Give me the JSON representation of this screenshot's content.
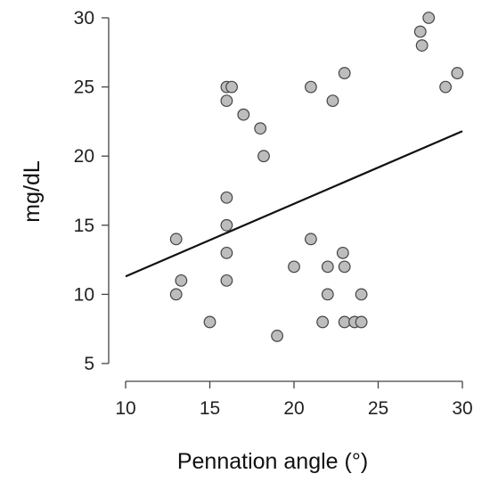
{
  "chart_data": {
    "type": "scatter",
    "title": "",
    "xlabel": "Pennation angle (°)",
    "ylabel": "mg/dL",
    "xlim": [
      10,
      30
    ],
    "ylim": [
      5,
      30
    ],
    "x_ticks": [
      10,
      15,
      20,
      25,
      30
    ],
    "y_ticks": [
      5,
      10,
      15,
      20,
      25,
      30
    ],
    "grid": false,
    "legend": "none",
    "colors": {
      "point_fill": "#bdbdbd",
      "point_stroke": "#444444",
      "trend_line": "#111111"
    },
    "series": [
      {
        "points": [
          {
            "x": 13.0,
            "y": 14
          },
          {
            "x": 13.0,
            "y": 10
          },
          {
            "x": 13.3,
            "y": 11
          },
          {
            "x": 15.0,
            "y": 8
          },
          {
            "x": 16.0,
            "y": 25
          },
          {
            "x": 16.3,
            "y": 25
          },
          {
            "x": 16.0,
            "y": 24
          },
          {
            "x": 16.0,
            "y": 17
          },
          {
            "x": 16.0,
            "y": 15
          },
          {
            "x": 16.0,
            "y": 13
          },
          {
            "x": 16.0,
            "y": 11
          },
          {
            "x": 17.0,
            "y": 23
          },
          {
            "x": 18.0,
            "y": 22
          },
          {
            "x": 18.2,
            "y": 20
          },
          {
            "x": 19.0,
            "y": 7
          },
          {
            "x": 20.0,
            "y": 12
          },
          {
            "x": 21.0,
            "y": 25
          },
          {
            "x": 21.0,
            "y": 14
          },
          {
            "x": 21.7,
            "y": 8
          },
          {
            "x": 22.0,
            "y": 12
          },
          {
            "x": 22.0,
            "y": 10
          },
          {
            "x": 22.3,
            "y": 24
          },
          {
            "x": 23.0,
            "y": 26
          },
          {
            "x": 22.9,
            "y": 13
          },
          {
            "x": 23.0,
            "y": 12
          },
          {
            "x": 23.0,
            "y": 8
          },
          {
            "x": 23.6,
            "y": 8
          },
          {
            "x": 24.0,
            "y": 10
          },
          {
            "x": 24.0,
            "y": 8
          },
          {
            "x": 27.5,
            "y": 29
          },
          {
            "x": 27.6,
            "y": 28
          },
          {
            "x": 28.0,
            "y": 30
          },
          {
            "x": 29.0,
            "y": 25
          },
          {
            "x": 29.7,
            "y": 26
          }
        ]
      }
    ],
    "trend_line": {
      "from": {
        "x": 10,
        "y": 11.3
      },
      "to": {
        "x": 30,
        "y": 21.8
      }
    }
  }
}
